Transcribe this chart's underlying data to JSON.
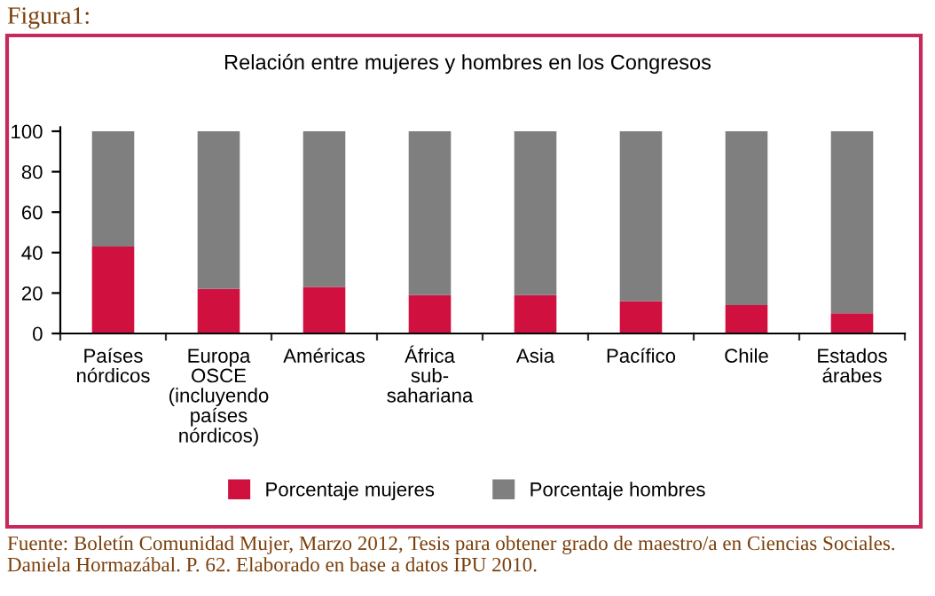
{
  "chart_data": {
    "type": "bar",
    "stacked": true,
    "title": "Relación entre mujeres y hombres en los Congresos",
    "categories": [
      "Países\nnórdicos",
      "Europa\nOSCE\n(incluyendo\npaíses\nnórdicos)",
      "Américas",
      "África\nsub-\nsahariana",
      "Asia",
      "Pacífico",
      "Chile",
      "Estados\nárabes"
    ],
    "series": [
      {
        "name": "Porcentaje mujeres",
        "color": "#d0103f",
        "values": [
          43,
          22,
          23,
          19,
          19,
          16,
          14,
          10
        ]
      },
      {
        "name": "Porcentaje hombres",
        "color": "#7f7f80",
        "values": [
          57,
          78,
          77,
          81,
          81,
          84,
          86,
          90
        ]
      }
    ],
    "ylim": [
      0,
      100
    ],
    "yticks": [
      0,
      20,
      40,
      60,
      80,
      100
    ],
    "grid": false,
    "legend": "bottom",
    "annotations": [
      "Figura1:",
      "Fuente: Boletín Comunidad Mujer, Marzo 2012, Tesis para obtener grado de maestro/a en Ciencias Sociales. Daniela Hormazábal. P. 62. Elaborado en base a datos IPU 2010."
    ]
  }
}
